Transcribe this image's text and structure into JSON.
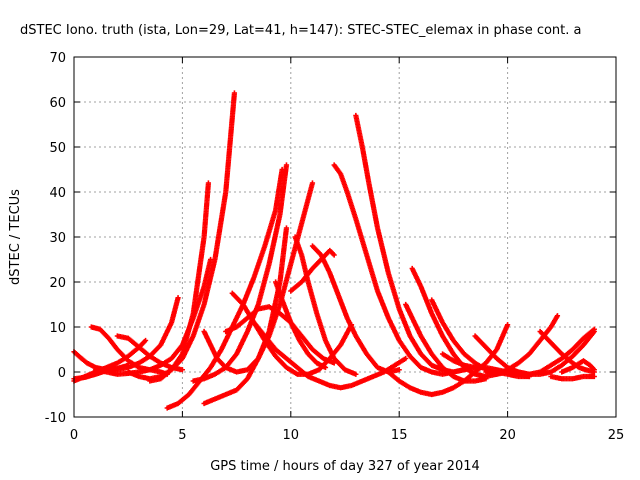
{
  "chart_data": {
    "type": "scatter",
    "title": "dSTEC Iono. truth (ista, Lon=29, Lat=41, h=147): STEC-STEC_elemax in phase cont. a",
    "xlabel": "GPS time / hours of day 327 of year 2014",
    "ylabel": "dSTEC  / TECUs",
    "xlim": [
      0,
      25
    ],
    "ylim": [
      -10,
      70
    ],
    "xticks": [
      0,
      5,
      10,
      15,
      20,
      25
    ],
    "yticks": [
      -10,
      0,
      10,
      20,
      30,
      40,
      50,
      60,
      70
    ],
    "grid": true,
    "legend": "none",
    "marker": "plus",
    "color": "#ff0000",
    "series": [
      {
        "x": [
          0.0,
          0.5,
          1.0,
          1.5,
          2.0,
          2.5,
          3.0,
          3.5,
          4.0,
          4.5,
          4.8
        ],
        "y": [
          -1.5,
          -1.2,
          -0.5,
          0.3,
          0.5,
          1.0,
          2.0,
          3.5,
          6.0,
          11.0,
          16.5
        ]
      },
      {
        "x": [
          0.0,
          0.3,
          0.6,
          1.0,
          1.5,
          2.0,
          2.5
        ],
        "y": [
          4.5,
          3.2,
          2.0,
          1.0,
          0.5,
          0.8,
          1.5
        ]
      },
      {
        "x": [
          0.8,
          1.2,
          1.6,
          2.0,
          2.5,
          3.0,
          3.5,
          4.0,
          4.3
        ],
        "y": [
          10.0,
          9.5,
          7.5,
          5.0,
          2.5,
          1.0,
          0.5,
          0.0,
          -0.5
        ]
      },
      {
        "x": [
          0.0,
          0.5,
          1.0,
          1.5,
          2.0,
          2.5,
          3.0,
          3.3
        ],
        "y": [
          -2.0,
          -1.0,
          0.0,
          1.0,
          2.0,
          3.5,
          5.5,
          7.0
        ]
      },
      {
        "x": [
          2.0,
          2.5,
          3.0,
          3.5,
          4.0,
          4.5,
          5.0
        ],
        "y": [
          8.0,
          7.5,
          5.5,
          3.5,
          2.0,
          1.0,
          0.5
        ]
      },
      {
        "x": [
          1.0,
          1.5,
          2.0,
          2.5,
          3.0,
          3.5,
          4.0,
          4.5,
          5.0,
          5.5,
          6.0,
          6.3
        ],
        "y": [
          0.5,
          0.0,
          -0.5,
          -0.3,
          0.0,
          0.5,
          1.5,
          3.0,
          6.0,
          12.0,
          19.0,
          25.0
        ]
      },
      {
        "x": [
          2.5,
          3.0,
          3.5,
          4.0,
          4.5,
          5.0,
          5.5,
          6.0,
          6.5,
          7.0,
          7.4
        ],
        "y": [
          0.0,
          -1.0,
          -1.5,
          -1.0,
          0.5,
          3.0,
          8.0,
          15.0,
          25.0,
          40.0,
          62.0
        ]
      },
      {
        "x": [
          3.5,
          4.0,
          4.5,
          5.0,
          5.5,
          6.0,
          6.2
        ],
        "y": [
          -2.0,
          -1.5,
          0.5,
          4.0,
          13.0,
          30.0,
          42.0
        ]
      },
      {
        "x": [
          4.3,
          4.8,
          5.3,
          5.8,
          6.3,
          6.8,
          7.3,
          7.8,
          8.3,
          8.8,
          9.3,
          9.6
        ],
        "y": [
          -8.0,
          -7.0,
          -5.0,
          -2.0,
          1.0,
          5.0,
          10.0,
          15.0,
          21.0,
          28.0,
          36.0,
          45.0
        ]
      },
      {
        "x": [
          6.0,
          6.3,
          6.6,
          7.0,
          7.5,
          8.0,
          8.5,
          9.0,
          9.5,
          9.8
        ],
        "y": [
          9.0,
          6.0,
          3.0,
          1.0,
          0.0,
          0.5,
          3.0,
          9.0,
          20.0,
          32.0
        ]
      },
      {
        "x": [
          6.0,
          6.5,
          7.0,
          7.5,
          8.0,
          8.5,
          9.0,
          9.5,
          10.0,
          10.5,
          11.0
        ],
        "y": [
          -7.0,
          -6.0,
          -5.0,
          -4.0,
          -1.5,
          3.0,
          8.0,
          15.0,
          24.0,
          33.0,
          42.0
        ]
      },
      {
        "x": [
          5.5,
          6.0,
          6.5,
          7.0,
          7.5,
          8.0,
          8.5,
          9.0,
          9.5,
          9.8
        ],
        "y": [
          -2.0,
          -1.5,
          -0.5,
          1.0,
          4.0,
          9.0,
          15.0,
          24.0,
          35.0,
          46.0
        ]
      },
      {
        "x": [
          7.3,
          7.8,
          8.3,
          8.8,
          9.3,
          9.8,
          10.3,
          10.8,
          11.3,
          11.8,
          12.3,
          12.8
        ],
        "y": [
          17.5,
          15.0,
          11.0,
          7.0,
          3.5,
          1.0,
          -0.5,
          -0.5,
          0.5,
          3.0,
          6.0,
          10.5
        ]
      },
      {
        "x": [
          8.3,
          8.8,
          9.3,
          9.8,
          10.3,
          10.8,
          11.3,
          11.8,
          12.3,
          12.8,
          13.3,
          13.8,
          14.3,
          14.8,
          15.3
        ],
        "y": [
          11.0,
          8.0,
          5.0,
          3.0,
          1.0,
          -1.0,
          -2.0,
          -3.0,
          -3.5,
          -3.0,
          -2.0,
          -1.0,
          0.0,
          1.5,
          3.0
        ]
      },
      {
        "x": [
          7.0,
          7.5,
          8.0,
          8.5,
          9.0,
          9.5,
          10.0,
          10.5,
          11.0,
          11.5,
          12.0
        ],
        "y": [
          9.0,
          10.0,
          12.0,
          14.0,
          14.5,
          13.0,
          11.0,
          8.0,
          5.0,
          3.0,
          2.0
        ]
      },
      {
        "x": [
          9.3,
          9.6,
          10.0,
          10.4,
          10.8,
          11.2,
          11.6
        ],
        "y": [
          20.0,
          16.0,
          11.0,
          7.0,
          4.0,
          2.0,
          1.0
        ]
      },
      {
        "x": [
          10.2,
          10.5,
          10.8,
          11.2,
          11.6,
          12.0,
          12.5,
          13.0
        ],
        "y": [
          30.0,
          26.0,
          20.0,
          13.0,
          7.0,
          3.0,
          0.5,
          -0.5
        ]
      },
      {
        "x": [
          11.0,
          11.4,
          11.8,
          12.2,
          12.6,
          13.0,
          13.5,
          14.0,
          14.5,
          15.0
        ],
        "y": [
          28.0,
          26.0,
          22.0,
          17.0,
          12.0,
          8.0,
          4.0,
          1.0,
          0.0,
          0.5
        ]
      },
      {
        "x": [
          10.0,
          10.5,
          11.0,
          11.5,
          11.8,
          12.0
        ],
        "y": [
          18.0,
          20.0,
          23.0,
          25.5,
          27.0,
          26.0
        ]
      },
      {
        "x": [
          12.0,
          12.3,
          12.6,
          13.0,
          13.5,
          14.0,
          14.5,
          15.0,
          15.5,
          16.0,
          16.5,
          17.0,
          17.5,
          18.0,
          18.5
        ],
        "y": [
          46.0,
          44.0,
          40.0,
          34.0,
          26.0,
          18.0,
          12.0,
          7.0,
          3.5,
          1.0,
          0.0,
          -0.5,
          0.0,
          0.5,
          1.0
        ]
      },
      {
        "x": [
          13.0,
          13.3,
          13.6,
          14.0,
          14.5,
          15.0,
          15.5,
          16.0,
          16.5,
          17.0,
          17.5,
          18.0
        ],
        "y": [
          57.0,
          50.0,
          42.0,
          32.0,
          22.0,
          14.0,
          8.0,
          4.0,
          1.5,
          0.5,
          0.0,
          0.5
        ]
      },
      {
        "x": [
          15.3,
          15.6,
          16.0,
          16.5,
          17.0,
          17.5,
          18.0,
          18.5,
          19.0
        ],
        "y": [
          15.0,
          12.0,
          8.0,
          4.0,
          1.0,
          -1.0,
          -2.0,
          -2.0,
          -1.5
        ]
      },
      {
        "x": [
          15.6,
          16.0,
          16.5,
          17.0,
          17.5,
          18.0,
          18.5,
          19.0,
          19.5,
          20.0
        ],
        "y": [
          23.0,
          19.0,
          13.0,
          8.0,
          4.0,
          1.0,
          -0.5,
          -1.0,
          -0.5,
          0.0
        ]
      },
      {
        "x": [
          16.5,
          17.0,
          17.5,
          18.0,
          18.5,
          19.0,
          19.5,
          20.0,
          20.5,
          21.0
        ],
        "y": [
          16.0,
          11.0,
          7.0,
          4.0,
          2.0,
          0.5,
          0.0,
          -0.5,
          -1.0,
          -1.0
        ]
      },
      {
        "x": [
          14.5,
          15.0,
          15.5,
          16.0,
          16.5,
          17.0,
          17.5,
          18.0,
          18.5,
          19.0,
          19.5,
          20.0
        ],
        "y": [
          0.0,
          -2.0,
          -3.5,
          -4.5,
          -5.0,
          -4.5,
          -3.5,
          -2.0,
          0.0,
          2.0,
          5.0,
          10.5
        ]
      },
      {
        "x": [
          18.5,
          19.0,
          19.5,
          20.0,
          20.5,
          21.0,
          21.5,
          22.0,
          22.5,
          23.0,
          23.5,
          24.0
        ],
        "y": [
          8.0,
          5.5,
          3.0,
          1.0,
          0.0,
          -0.5,
          0.0,
          1.5,
          3.0,
          5.0,
          7.5,
          9.5
        ]
      },
      {
        "x": [
          19.0,
          19.5,
          20.0,
          20.5,
          21.0,
          21.5,
          22.0,
          22.3
        ],
        "y": [
          0.0,
          -0.5,
          0.5,
          2.0,
          4.0,
          7.0,
          10.0,
          12.5
        ]
      },
      {
        "x": [
          20.0,
          20.5,
          21.0,
          21.5,
          22.0,
          22.5,
          23.0,
          23.5,
          24.0
        ],
        "y": [
          0.5,
          0.0,
          -0.5,
          -0.5,
          0.0,
          1.5,
          3.5,
          6.0,
          9.0
        ]
      },
      {
        "x": [
          21.5,
          22.0,
          22.5,
          23.0,
          23.3,
          23.6,
          24.0
        ],
        "y": [
          9.0,
          6.5,
          4.0,
          2.0,
          1.0,
          0.5,
          0.0
        ]
      },
      {
        "x": [
          22.5,
          23.0,
          23.5,
          23.8,
          24.0
        ],
        "y": [
          0.0,
          1.0,
          2.5,
          1.5,
          0.5
        ]
      },
      {
        "x": [
          22.0,
          22.5,
          23.0,
          23.5,
          24.0
        ],
        "y": [
          -1.0,
          -1.5,
          -1.5,
          -1.0,
          -1.0
        ]
      },
      {
        "x": [
          17.0,
          17.5,
          18.0,
          18.5,
          19.0,
          19.5,
          20.0,
          20.5,
          21.0
        ],
        "y": [
          4.0,
          2.5,
          1.5,
          1.0,
          1.0,
          0.5,
          0.0,
          -0.5,
          -1.0
        ]
      }
    ]
  }
}
